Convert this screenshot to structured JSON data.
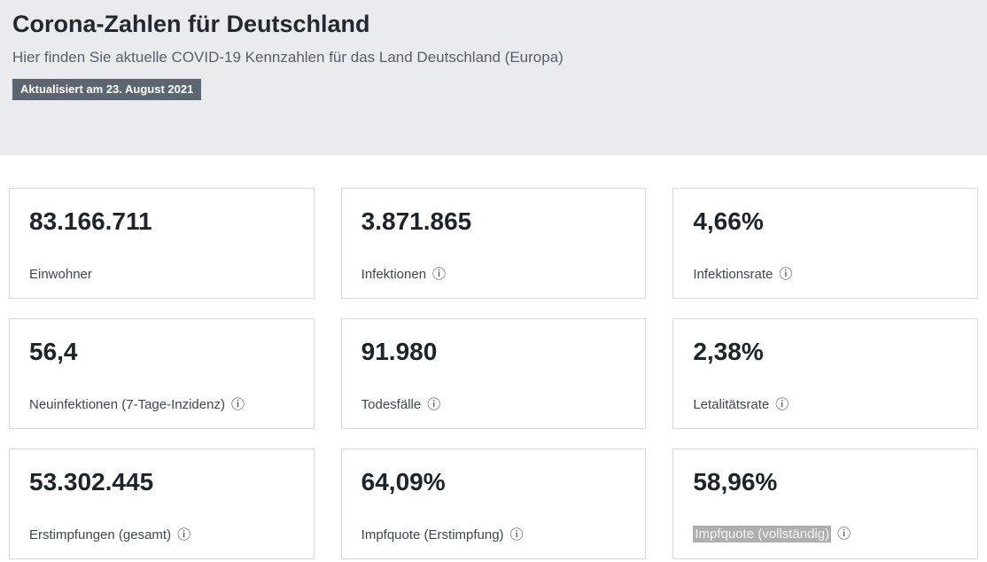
{
  "page": {
    "title": "Corona-Zahlen für Deutschland",
    "subtitle": "Hier finden Sie aktuelle COVID-19 Kennzahlen für das Land Deutschland (Europa)",
    "updated_badge": "Aktualisiert am 23. August 2021"
  },
  "colors": {
    "hero_background": "#e9ebee",
    "badge_background": "#5c6670",
    "card_border": "#d8d8d8",
    "highlight_background": "#aeaeae"
  },
  "icons": {
    "info_glyph": "ⓘ",
    "info_name": "info-icon"
  },
  "cards": [
    {
      "value": "83.166.711",
      "label": "Einwohner"
    },
    {
      "value": "3.871.865",
      "label": "Infektionen"
    },
    {
      "value": "4,66%",
      "label": "Infektionsrate"
    },
    {
      "value": "56,4",
      "label": "Neuinfektionen (7-Tage-Inzidenz)"
    },
    {
      "value": "91.980",
      "label": "Todesfälle"
    },
    {
      "value": "2,38%",
      "label": "Letalitätsrate"
    },
    {
      "value": "53.302.445",
      "label": "Erstimpfungen (gesamt)"
    },
    {
      "value": "64,09%",
      "label": "Impfquote (Erstimpfung)"
    },
    {
      "value": "58,96%",
      "label": "Impfquote (vollständig)",
      "highlighted": true
    }
  ]
}
